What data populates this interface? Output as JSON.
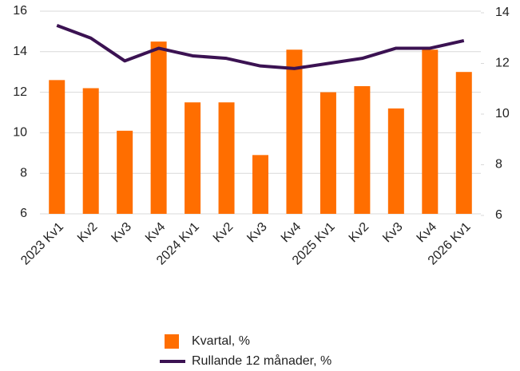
{
  "chart_data": {
    "type": "bar-line",
    "categories": [
      "2023 Kv1",
      "Kv2",
      "Kv3",
      "Kv4",
      "2024 Kv1",
      "Kv2",
      "Kv3",
      "Kv4",
      "2025 Kv1",
      "Kv2",
      "Kv3",
      "Kv4",
      "2026 Kv1"
    ],
    "series": [
      {
        "name": "Kvartal, %",
        "color": "#ff6e00",
        "type": "bar",
        "axis": "y",
        "values": [
          12.6,
          12.2,
          10.1,
          14.5,
          11.5,
          11.5,
          8.9,
          14.1,
          12.0,
          12.3,
          11.2,
          14.1,
          13.0
        ]
      },
      {
        "name": "Rullande 12 månader, %",
        "color": "#3b1252",
        "type": "line",
        "axis": "y2",
        "values": [
          13.5,
          13.0,
          12.1,
          12.6,
          12.3,
          12.2,
          11.9,
          11.8,
          12.0,
          12.2,
          12.6,
          12.6,
          12.9
        ]
      }
    ],
    "ylim": [
      6,
      16
    ],
    "yticks": [
      6,
      8,
      10,
      12,
      14,
      16
    ],
    "y2lim": [
      6,
      14
    ],
    "y2ticks": [
      6,
      8,
      10,
      12,
      14
    ],
    "grid": true,
    "legend": "bottom"
  }
}
